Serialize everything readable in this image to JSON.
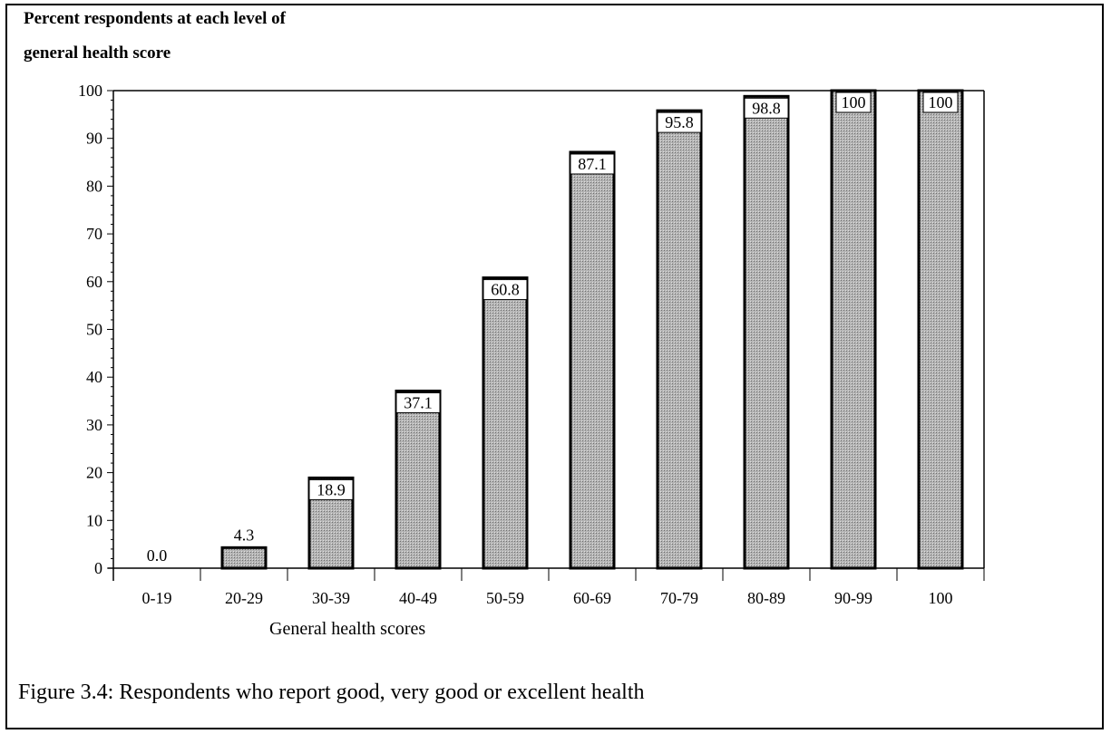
{
  "chart_data": {
    "type": "bar",
    "categories": [
      "0-19",
      "20-29",
      "30-39",
      "40-49",
      "50-59",
      "60-69",
      "70-79",
      "80-89",
      "90-99",
      "100"
    ],
    "values": [
      0.0,
      4.3,
      18.9,
      37.1,
      60.8,
      87.1,
      95.8,
      98.8,
      100,
      100
    ],
    "value_labels": [
      "0.0",
      "4.3",
      "18.9",
      "37.1",
      "60.8",
      "87.1",
      "95.8",
      "98.8",
      "100",
      "100"
    ],
    "ylabel_lines": [
      "Percent  respondents at each level of",
      "general health score"
    ],
    "xlabel": "General health  scores",
    "ylim": [
      0,
      100
    ],
    "yticks": [
      0,
      10,
      20,
      30,
      40,
      50,
      60,
      70,
      80,
      90,
      100
    ],
    "grid": false,
    "bar_color": "#a9a9a9"
  },
  "caption": "Figure 3.4: Respondents who report good, very good or excellent health"
}
